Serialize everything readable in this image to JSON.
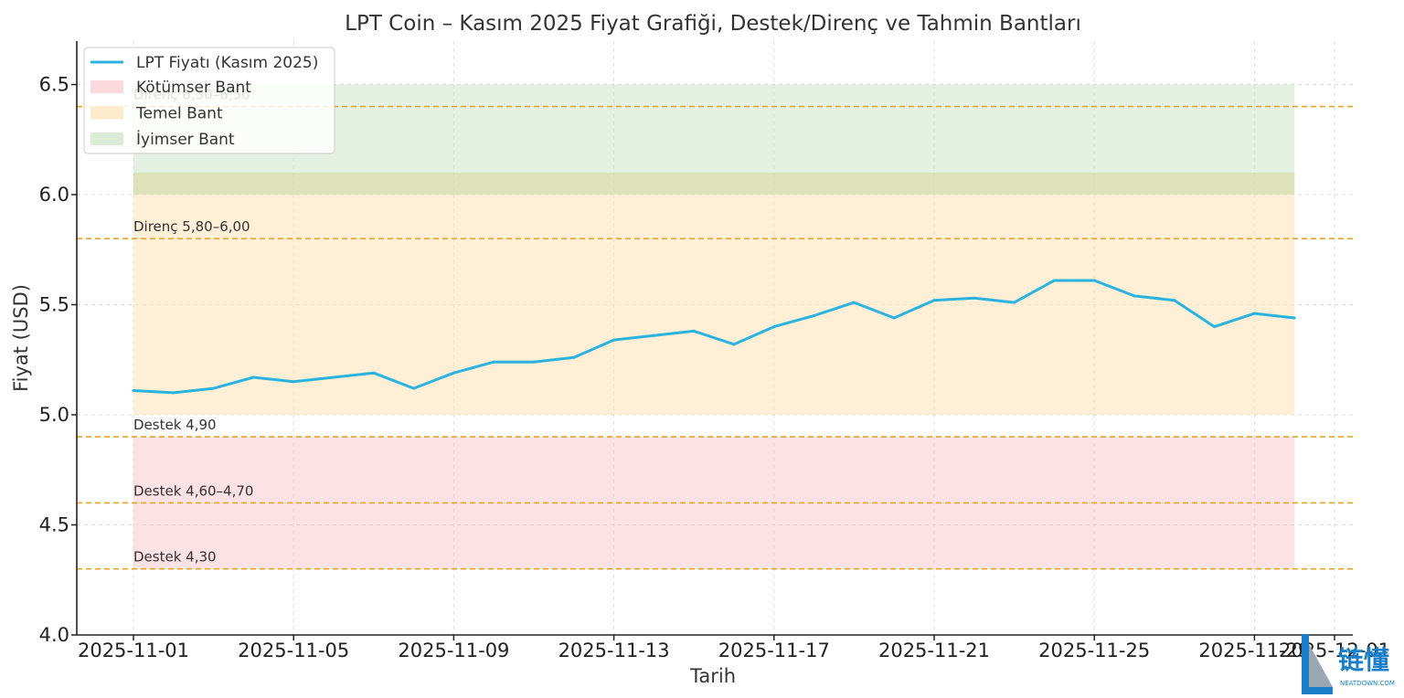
{
  "chart_data": {
    "type": "line",
    "title": "LPT Coin – Kasım 2025 Fiyat Grafiği, Destek/Direnç ve Tahmin Bantları",
    "xlabel": "Tarih",
    "ylabel": "Fiyat (USD)",
    "ylim": [
      4.0,
      6.7
    ],
    "yticks": [
      "4.0",
      "4.5",
      "5.0",
      "5.5",
      "6.0",
      "6.5"
    ],
    "x_tick_labels": [
      "2025-11-01",
      "2025-11-05",
      "2025-11-09",
      "2025-11-13",
      "2025-11-17",
      "2025-11-21",
      "2025-11-25",
      "2025-11-29",
      "2025-12-01"
    ],
    "grid": true,
    "legend_position": "top-left",
    "series": [
      {
        "name": "LPT Fiyatı (Kasım 2025)",
        "color": "#2bb3e0",
        "x": [
          "2025-11-01",
          "2025-11-02",
          "2025-11-03",
          "2025-11-04",
          "2025-11-05",
          "2025-11-06",
          "2025-11-07",
          "2025-11-08",
          "2025-11-09",
          "2025-11-10",
          "2025-11-11",
          "2025-11-12",
          "2025-11-13",
          "2025-11-14",
          "2025-11-15",
          "2025-11-16",
          "2025-11-17",
          "2025-11-18",
          "2025-11-19",
          "2025-11-20",
          "2025-11-21",
          "2025-11-22",
          "2025-11-23",
          "2025-11-24",
          "2025-11-25",
          "2025-11-26",
          "2025-11-27",
          "2025-11-28",
          "2025-11-29",
          "2025-11-30"
        ],
        "values": [
          5.11,
          5.1,
          5.12,
          5.17,
          5.15,
          5.17,
          5.19,
          5.12,
          5.19,
          5.24,
          5.24,
          5.26,
          5.34,
          5.36,
          5.38,
          5.32,
          5.4,
          5.45,
          5.51,
          5.44,
          5.52,
          5.53,
          5.51,
          5.61,
          5.61,
          5.54,
          5.52,
          5.4,
          5.46,
          5.44
        ]
      }
    ],
    "bands": [
      {
        "name": "Kötümser Bant",
        "from": 4.3,
        "to": 4.9,
        "color": "#f9c9cf",
        "opacity": 0.55
      },
      {
        "name": "Temel Bant",
        "from": 5.0,
        "to": 6.0,
        "color": "#fde2b5",
        "opacity": 0.55
      },
      {
        "name": "İyimser Bant",
        "from": 6.0,
        "to": 6.5,
        "color": "#cde3c8",
        "opacity": 0.55
      },
      {
        "name": "",
        "from": 6.0,
        "to": 6.1,
        "color": "#d9d9a0",
        "opacity": 0.6
      }
    ],
    "reference_lines": [
      {
        "value": 6.4,
        "label": "Direnç 6,30–6,50"
      },
      {
        "value": 5.8,
        "label": "Direnç 5,80–6,00"
      },
      {
        "value": 4.9,
        "label": "Destek 4,90"
      },
      {
        "value": 4.6,
        "label": "Destek 4,60–4,70"
      },
      {
        "value": 4.3,
        "label": "Destek 4,30"
      }
    ],
    "reference_line_color": "#e8a52a"
  },
  "watermark": {
    "text": "链懂",
    "subtext": "NEATDOWN.COM"
  }
}
